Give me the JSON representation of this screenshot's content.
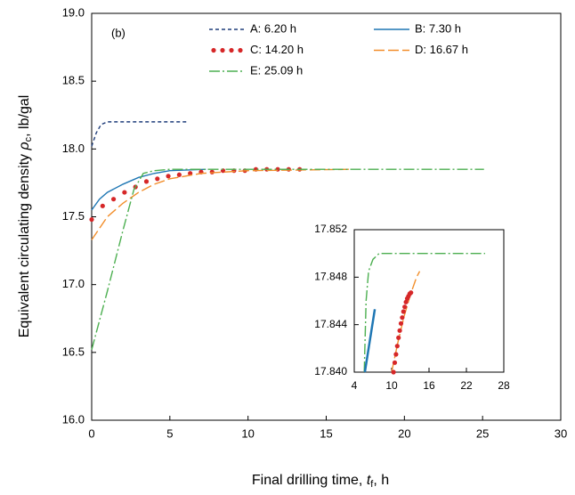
{
  "chart_data": [
    {
      "type": "line",
      "annotation": "(b)",
      "xlabel_parts": [
        "Final drilling time, ",
        "t",
        "f",
        ", h"
      ],
      "ylabel_parts": [
        "Equivalent circulating density ",
        "ρ",
        "c",
        ", lb/gal"
      ],
      "xlim": [
        0,
        30
      ],
      "xticks": [
        0,
        5,
        10,
        15,
        20,
        25,
        30
      ],
      "ylim": [
        16,
        19
      ],
      "yticks": [
        {
          "value": 16,
          "label": "16.0"
        },
        16.5,
        {
          "value": 17,
          "label": "17.0"
        },
        17.5,
        {
          "value": 18,
          "label": "18.0"
        },
        18.5,
        {
          "value": 19,
          "label": "19.0"
        }
      ],
      "series": [
        {
          "name": "A: 6.20 h",
          "color": "#1f3d7a",
          "style": "dash",
          "x": [
            0,
            0.3,
            0.6,
            1,
            2,
            6.2
          ],
          "values": [
            18.02,
            18.12,
            18.18,
            18.2,
            18.2,
            18.2
          ]
        },
        {
          "name": "B: 7.30 h",
          "color": "#1f77b4",
          "style": "solid",
          "x": [
            0,
            0.5,
            1,
            2,
            3,
            4,
            5,
            7.3
          ],
          "values": [
            17.55,
            17.63,
            17.68,
            17.74,
            17.79,
            17.82,
            17.84,
            17.85
          ]
        },
        {
          "name": "C: 14.20 h",
          "color": "#d62728",
          "style": "dots",
          "x": [
            0,
            0.7,
            1.4,
            2.1,
            2.8,
            3.5,
            4.2,
            4.9,
            5.6,
            6.3,
            7.0,
            7.7,
            8.4,
            9.1,
            9.8,
            10.5,
            11.2,
            11.9,
            12.6,
            13.3
          ],
          "values": [
            17.48,
            17.58,
            17.63,
            17.68,
            17.72,
            17.76,
            17.78,
            17.8,
            17.81,
            17.82,
            17.83,
            17.83,
            17.84,
            17.84,
            17.84,
            17.85,
            17.85,
            17.85,
            17.85,
            17.85
          ]
        },
        {
          "name": "D: 16.67 h",
          "color": "#f28e2b",
          "style": "longdash",
          "x": [
            0,
            1,
            2,
            3,
            4,
            5,
            7,
            10,
            16.67
          ],
          "values": [
            17.33,
            17.5,
            17.6,
            17.68,
            17.74,
            17.78,
            17.82,
            17.84,
            17.85
          ]
        },
        {
          "name": "E: 25.09 h",
          "color": "#4caf50",
          "style": "dashdot",
          "x": [
            0,
            1,
            2,
            2.7,
            3.3,
            4,
            5,
            25.09
          ],
          "values": [
            16.52,
            16.95,
            17.4,
            17.7,
            17.82,
            17.84,
            17.85,
            17.85
          ]
        }
      ]
    },
    {
      "type": "line",
      "xlim": [
        4,
        28
      ],
      "xticks": [
        4,
        10,
        16,
        22,
        28
      ],
      "ylim": [
        17.84,
        17.852
      ],
      "yticks": [
        {
          "value": 17.84,
          "label": "17.840"
        },
        17.844,
        17.848,
        17.852
      ],
      "series": [
        {
          "color": "#4caf50",
          "style": "dashdot",
          "x": [
            5.6,
            5.9,
            6.3,
            7,
            8,
            25
          ],
          "values": [
            17.84,
            17.846,
            17.8485,
            17.8495,
            17.85,
            17.85
          ]
        },
        {
          "color": "#1f77b4",
          "style": "thick",
          "x": [
            5.7,
            7.3
          ],
          "values": [
            17.84,
            17.8453
          ]
        },
        {
          "color": "#f28e2b",
          "style": "longdash",
          "x": [
            10,
            11,
            12,
            13,
            14,
            14.5
          ],
          "values": [
            17.84,
            17.8425,
            17.8447,
            17.8465,
            17.848,
            17.8485
          ]
        },
        {
          "color": "#d62728",
          "style": "dots",
          "x": [
            10.3,
            10.5,
            10.7,
            10.9,
            11.1,
            11.3,
            11.5,
            11.7,
            11.9,
            12.1,
            12.3,
            12.5,
            12.7,
            12.9,
            13.1
          ],
          "values": [
            17.84,
            17.8408,
            17.8415,
            17.8422,
            17.8429,
            17.8435,
            17.8441,
            17.8446,
            17.8451,
            17.8455,
            17.8459,
            17.8462,
            17.8464,
            17.8466,
            17.8467
          ]
        }
      ]
    }
  ]
}
